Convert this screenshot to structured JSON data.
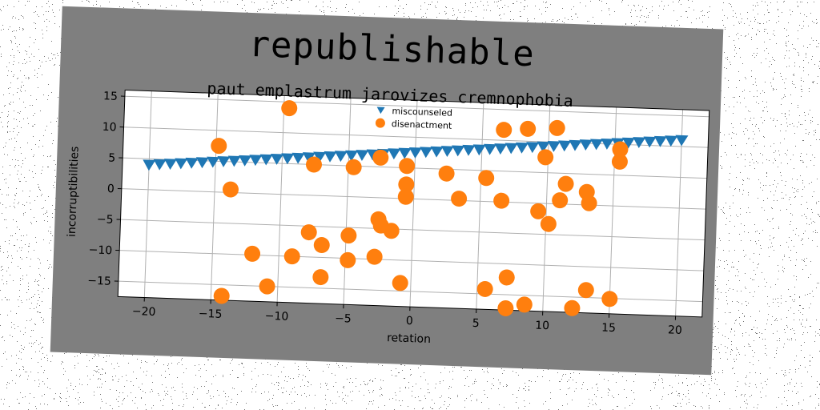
{
  "title": "republishable",
  "subtitle": "paut emplastrum jarovizes cremnophobia",
  "colors": {
    "card_bg": "#7f7f7f",
    "plot_bg": "#ffffff",
    "grid": "#b0b0b0",
    "series_1": "#1f77b4",
    "series_2": "#ff7f0e"
  },
  "chart_data": {
    "type": "scatter",
    "title": "republishable",
    "subtitle": "paut emplastrum jarovizes cremnophobia",
    "xlabel": "retation",
    "ylabel": "incorruptibilities",
    "xlim": [
      -22,
      22
    ],
    "ylim": [
      -17.5,
      16
    ],
    "xticks": [
      -20,
      -15,
      -10,
      -5,
      0,
      5,
      10,
      15,
      20
    ],
    "xtick_labels": [
      "−20",
      "−15",
      "−10",
      "−5",
      "0",
      "5",
      "10",
      "15",
      "20"
    ],
    "yticks": [
      -15,
      -10,
      -5,
      0,
      5,
      10,
      15
    ],
    "ytick_labels": [
      "−15",
      "−10",
      "−5",
      "0",
      "5",
      "10",
      "15"
    ],
    "grid": true,
    "legend_position": "top-center",
    "series": [
      {
        "name": "miscounseled",
        "marker": "triangle-down",
        "color": "#1f77b4",
        "x": [
          -20.0,
          -19.2,
          -18.4,
          -17.6,
          -16.8,
          -16.0,
          -15.2,
          -14.4,
          -13.6,
          -12.8,
          -12.0,
          -11.2,
          -10.4,
          -9.6,
          -8.8,
          -8.0,
          -7.2,
          -6.4,
          -5.6,
          -4.8,
          -4.0,
          -3.2,
          -2.4,
          -1.6,
          -0.8,
          0.0,
          0.8,
          1.6,
          2.4,
          3.2,
          4.0,
          4.8,
          5.6,
          6.4,
          7.2,
          8.0,
          8.8,
          9.6,
          10.4,
          11.2,
          12.0,
          12.8,
          13.6,
          14.4,
          15.2,
          16.0,
          16.8,
          17.6,
          18.4,
          19.2,
          20.0
        ],
        "y": [
          4.0,
          4.14,
          4.28,
          4.42,
          4.56,
          4.7,
          4.84,
          4.98,
          5.12,
          5.26,
          5.4,
          5.54,
          5.68,
          5.82,
          5.96,
          6.1,
          6.24,
          6.38,
          6.52,
          6.66,
          6.8,
          6.94,
          7.08,
          7.22,
          7.36,
          7.5,
          7.64,
          7.78,
          7.92,
          8.06,
          8.2,
          8.34,
          8.48,
          8.62,
          8.76,
          8.9,
          9.04,
          9.18,
          9.32,
          9.46,
          9.6,
          9.74,
          9.88,
          10.02,
          10.16,
          10.3,
          10.44,
          10.58,
          10.72,
          10.86,
          11.0
        ]
      },
      {
        "name": "disenactment",
        "marker": "circle",
        "color": "#ff7f0e",
        "x": [
          -14.8,
          -13.8,
          -14.2,
          -12.0,
          -10.8,
          -9.6,
          -9.0,
          -7.8,
          -7.6,
          -6.8,
          -6.8,
          -4.8,
          -4.8,
          -4.6,
          -2.8,
          -2.6,
          -2.6,
          -2.4,
          -1.6,
          -0.8,
          -0.6,
          -0.6,
          -0.6,
          2.4,
          3.4,
          5.4,
          5.6,
          6.6,
          6.6,
          7.2,
          7.2,
          8.4,
          8.6,
          9.4,
          9.8,
          10.2,
          10.6,
          11.0,
          11.4,
          12.2,
          13.0,
          13.2,
          13.2,
          15.0,
          15.4,
          15.4
        ],
        "y": [
          7.5,
          0.5,
          -16.8,
          -9.8,
          -15.0,
          14.0,
          -10.0,
          -6.0,
          5.0,
          -8.0,
          -13.2,
          -6.3,
          -10.3,
          4.8,
          -9.6,
          6.5,
          -3.5,
          -4.5,
          -5.3,
          -13.7,
          5.3,
          2.3,
          0.3,
          4.3,
          0.3,
          3.8,
          -14.2,
          0.2,
          11.7,
          -12.2,
          -17.2,
          12.0,
          -16.5,
          -1.3,
          7.5,
          -3.3,
          12.3,
          0.6,
          3.3,
          -16.8,
          2.1,
          0.3,
          -13.8,
          -15.1,
          7.2,
          9.2
        ]
      }
    ]
  }
}
